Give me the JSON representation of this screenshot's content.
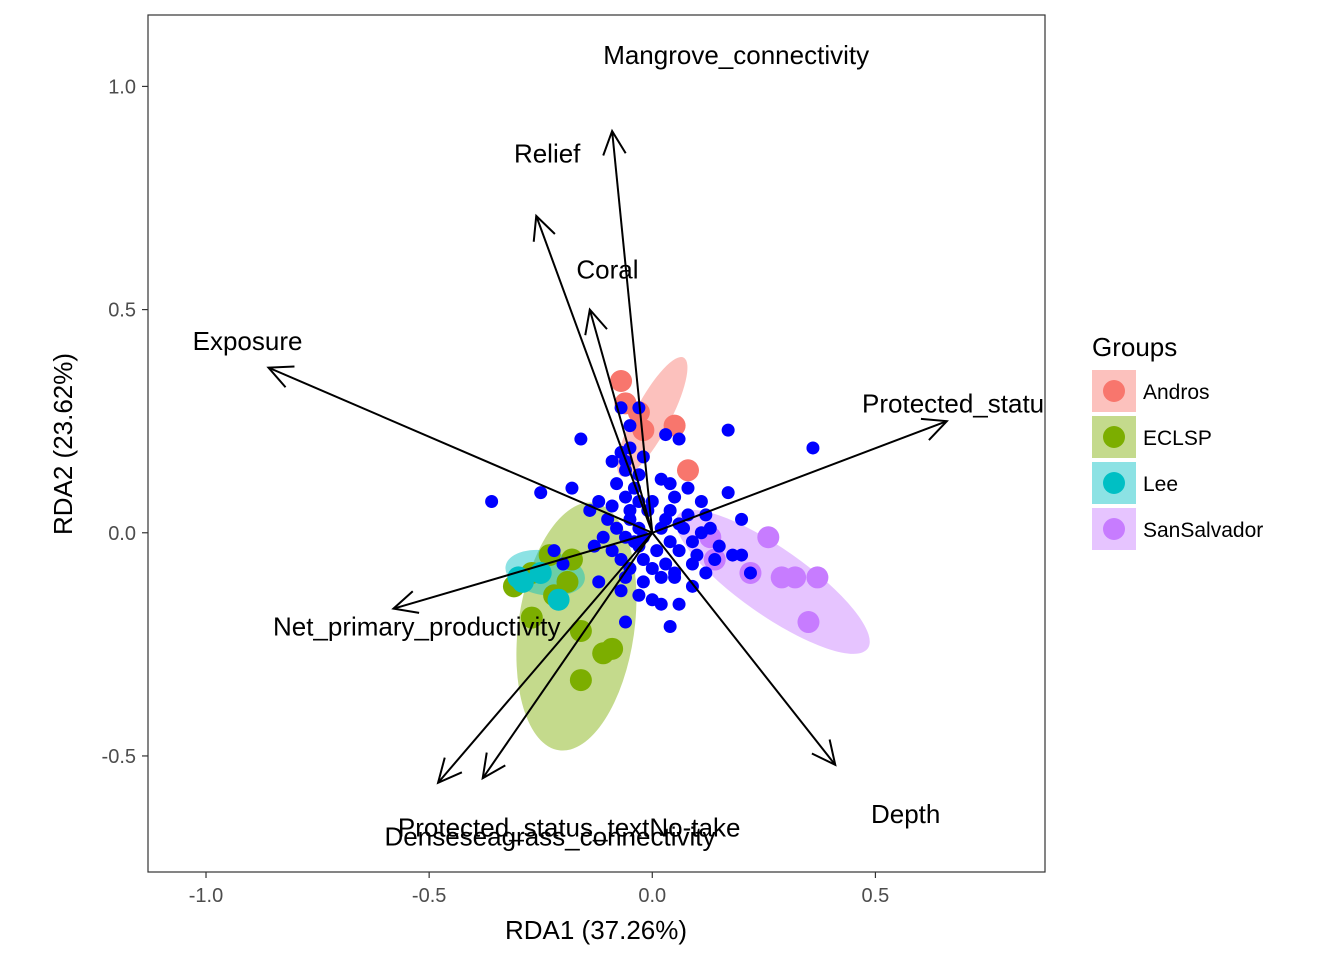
{
  "chart_data": {
    "type": "scatter",
    "subtype": "rda-biplot",
    "xlabel": "RDA1 (37.26%)",
    "ylabel": "RDA2 (23.62%)",
    "xlim": [
      -1.13,
      0.88
    ],
    "ylim": [
      -0.76,
      1.16
    ],
    "x_ticks": [
      -1.0,
      -0.5,
      0.0,
      0.5
    ],
    "x_tick_labels": [
      "-1.0",
      "-0.5",
      "0.0",
      "0.5"
    ],
    "y_ticks": [
      -0.5,
      0.0,
      0.5,
      1.0
    ],
    "y_tick_labels": [
      "-0.5",
      "0.0",
      "0.5",
      "1.0"
    ],
    "grid": false,
    "legend": {
      "title": "Groups",
      "placement": "right",
      "entries": [
        {
          "name": "Andros",
          "color": "#F8766D"
        },
        {
          "name": "ECLSP",
          "color": "#7CAE00"
        },
        {
          "name": "Lee",
          "color": "#00BFC4"
        },
        {
          "name": "SanSalvador",
          "color": "#C77CFF"
        }
      ]
    },
    "ellipses": [
      {
        "group": "Andros",
        "center": [
          0.0,
          0.26
        ],
        "semi_axes": [
          0.04,
          0.15
        ],
        "angle_deg": 28,
        "color": "#F8766D"
      },
      {
        "group": "ECLSP",
        "center": [
          -0.17,
          -0.21
        ],
        "semi_axes": [
          0.13,
          0.28
        ],
        "angle_deg": 8,
        "color": "#7CAE00"
      },
      {
        "group": "Lee",
        "center": [
          -0.24,
          -0.09
        ],
        "semi_axes": [
          0.09,
          0.05
        ],
        "angle_deg": 10,
        "color": "#00BFC4"
      },
      {
        "group": "SanSalvador",
        "center": [
          0.27,
          -0.11
        ],
        "semi_axes": [
          0.075,
          0.26
        ],
        "angle_deg": -55,
        "color": "#C77CFF"
      }
    ],
    "group_points": [
      {
        "group": "Andros",
        "color": "#F8766D",
        "points": [
          [
            -0.07,
            0.34
          ],
          [
            -0.06,
            0.29
          ],
          [
            -0.03,
            0.27
          ],
          [
            0.05,
            0.24
          ],
          [
            -0.02,
            0.23
          ],
          [
            0.08,
            0.14
          ]
        ]
      },
      {
        "group": "ECLSP",
        "color": "#7CAE00",
        "points": [
          [
            -0.23,
            -0.05
          ],
          [
            -0.18,
            -0.06
          ],
          [
            -0.19,
            -0.11
          ],
          [
            -0.27,
            -0.09
          ],
          [
            -0.31,
            -0.12
          ],
          [
            -0.22,
            -0.14
          ],
          [
            -0.27,
            -0.19
          ],
          [
            -0.16,
            -0.22
          ],
          [
            -0.09,
            -0.26
          ],
          [
            -0.11,
            -0.27
          ],
          [
            -0.16,
            -0.33
          ]
        ]
      },
      {
        "group": "Lee",
        "color": "#00BFC4",
        "points": [
          [
            -0.3,
            -0.1
          ],
          [
            -0.29,
            -0.11
          ],
          [
            -0.25,
            -0.09
          ],
          [
            -0.21,
            -0.15
          ]
        ]
      },
      {
        "group": "SanSalvador",
        "color": "#C77CFF",
        "points": [
          [
            0.13,
            -0.01
          ],
          [
            0.26,
            -0.01
          ],
          [
            0.14,
            -0.06
          ],
          [
            0.22,
            -0.09
          ],
          [
            0.29,
            -0.1
          ],
          [
            0.32,
            -0.1
          ],
          [
            0.37,
            -0.1
          ],
          [
            0.35,
            -0.2
          ]
        ]
      }
    ],
    "site_points": {
      "color": "#0000FF",
      "points": [
        [
          0.17,
          0.23
        ],
        [
          0.36,
          0.19
        ],
        [
          -0.16,
          0.21
        ],
        [
          -0.05,
          0.24
        ],
        [
          -0.07,
          0.28
        ],
        [
          -0.03,
          0.28
        ],
        [
          0.03,
          0.22
        ],
        [
          0.06,
          0.21
        ],
        [
          -0.05,
          0.19
        ],
        [
          -0.07,
          0.18
        ],
        [
          -0.06,
          0.16
        ],
        [
          -0.02,
          0.17
        ],
        [
          -0.09,
          0.16
        ],
        [
          -0.06,
          0.14
        ],
        [
          -0.03,
          0.13
        ],
        [
          0.02,
          0.12
        ],
        [
          0.04,
          0.11
        ],
        [
          -0.08,
          0.11
        ],
        [
          -0.04,
          0.1
        ],
        [
          0.08,
          0.1
        ],
        [
          -0.36,
          0.07
        ],
        [
          -0.25,
          0.09
        ],
        [
          -0.18,
          0.1
        ],
        [
          -0.12,
          0.07
        ],
        [
          -0.06,
          0.08
        ],
        [
          -0.03,
          0.07
        ],
        [
          0.0,
          0.07
        ],
        [
          0.05,
          0.08
        ],
        [
          0.11,
          0.07
        ],
        [
          0.17,
          0.09
        ],
        [
          -0.14,
          0.05
        ],
        [
          -0.09,
          0.06
        ],
        [
          -0.05,
          0.05
        ],
        [
          -0.01,
          0.05
        ],
        [
          0.04,
          0.05
        ],
        [
          0.08,
          0.04
        ],
        [
          0.12,
          0.04
        ],
        [
          -0.1,
          0.03
        ],
        [
          -0.05,
          0.03
        ],
        [
          0.03,
          0.03
        ],
        [
          0.06,
          0.02
        ],
        [
          -0.08,
          0.01
        ],
        [
          -0.03,
          0.01
        ],
        [
          0.02,
          0.01
        ],
        [
          0.07,
          0.01
        ],
        [
          0.11,
          0.0
        ],
        [
          -0.11,
          -0.01
        ],
        [
          -0.06,
          -0.01
        ],
        [
          -0.02,
          -0.01
        ],
        [
          0.04,
          -0.02
        ],
        [
          0.09,
          -0.02
        ],
        [
          0.2,
          0.03
        ],
        [
          -0.13,
          -0.03
        ],
        [
          -0.09,
          -0.04
        ],
        [
          -0.03,
          -0.03
        ],
        [
          0.01,
          -0.04
        ],
        [
          0.06,
          -0.04
        ],
        [
          0.1,
          -0.05
        ],
        [
          -0.07,
          -0.06
        ],
        [
          -0.02,
          -0.06
        ],
        [
          0.03,
          -0.07
        ],
        [
          0.09,
          -0.07
        ],
        [
          0.14,
          -0.06
        ],
        [
          0.18,
          -0.05
        ],
        [
          -0.05,
          -0.08
        ],
        [
          0.0,
          -0.08
        ],
        [
          0.05,
          -0.09
        ],
        [
          0.12,
          -0.09
        ],
        [
          0.2,
          -0.05
        ],
        [
          -0.06,
          -0.1
        ],
        [
          -0.02,
          -0.11
        ],
        [
          0.02,
          -0.1
        ],
        [
          0.05,
          -0.1
        ],
        [
          0.09,
          -0.12
        ],
        [
          -0.07,
          -0.13
        ],
        [
          -0.03,
          -0.14
        ],
        [
          0.0,
          -0.15
        ],
        [
          0.02,
          -0.16
        ],
        [
          0.06,
          -0.16
        ],
        [
          -0.06,
          -0.2
        ],
        [
          0.04,
          -0.21
        ],
        [
          -0.22,
          -0.04
        ],
        [
          -0.2,
          -0.07
        ],
        [
          -0.12,
          -0.11
        ],
        [
          -0.04,
          -0.02
        ],
        [
          0.13,
          0.01
        ],
        [
          0.15,
          -0.03
        ],
        [
          0.22,
          -0.09
        ]
      ]
    },
    "arrows": [
      {
        "label": "Mangrove_connectivity",
        "end": [
          -0.09,
          0.9
        ],
        "label_pos": [
          -0.11,
          1.07
        ]
      },
      {
        "label": "Relief",
        "end": [
          -0.26,
          0.71
        ],
        "label_pos": [
          -0.31,
          0.85
        ]
      },
      {
        "label": "Coral",
        "end": [
          -0.14,
          0.5
        ],
        "label_pos": [
          -0.17,
          0.59
        ]
      },
      {
        "label": "Exposure",
        "end": [
          -0.86,
          0.37
        ],
        "label_pos": [
          -1.03,
          0.43
        ]
      },
      {
        "label": "Protected_status_textSc",
        "end": [
          0.66,
          0.25
        ],
        "label_pos": [
          0.47,
          0.29
        ]
      },
      {
        "label": "Net_primary_productivity",
        "end": [
          -0.58,
          -0.17
        ],
        "label_pos": [
          -0.85,
          -0.21
        ]
      },
      {
        "label": "Depth",
        "end": [
          0.41,
          -0.52
        ],
        "label_pos": [
          0.49,
          -0.63
        ]
      },
      {
        "label": "Protected_status_textNo-take",
        "end": [
          -0.38,
          -0.55
        ],
        "label_pos": [
          -0.57,
          -0.66
        ]
      },
      {
        "label": "Denseseagrass_connectivity",
        "end": [
          -0.48,
          -0.56
        ],
        "label_pos": [
          -0.6,
          -0.68
        ]
      }
    ]
  }
}
